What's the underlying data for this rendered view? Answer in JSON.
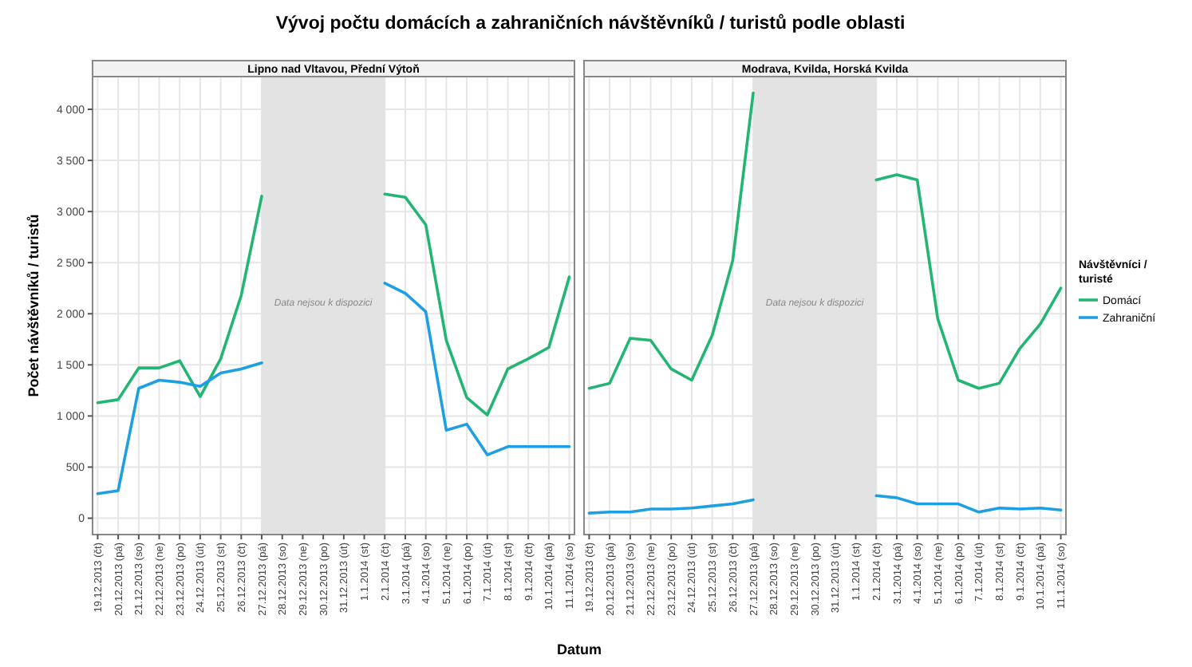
{
  "chart_data": [
    {
      "type": "line",
      "title": "Vývoj počtu domácích a zahraničních návštěvníků / turistů podle oblasti",
      "subtitle": "Lipno nad Vltavou, Přední Výtoň",
      "xlabel": "Datum",
      "ylabel": "Počet návštěvníků / turistů",
      "categories": [
        "19.12.2013 (čt)",
        "20.12.2013 (pá)",
        "21.12.2013 (so)",
        "22.12.2013 (ne)",
        "23.12.2013 (po)",
        "24.12.2013 (út)",
        "25.12.2013 (st)",
        "26.12.2013 (čt)",
        "27.12.2013 (pá)",
        "28.12.2013 (so)",
        "29.12.2013 (ne)",
        "30.12.2013 (po)",
        "31.12.2013 (út)",
        "1.1.2014 (st)",
        "2.1.2014 (čt)",
        "3.1.2014 (pá)",
        "4.1.2014 (so)",
        "5.1.2014 (ne)",
        "6.1.2014 (po)",
        "7.1.2014 (út)",
        "8.1.2014 (st)",
        "9.1.2014 (čt)",
        "10.1.2014 (pá)",
        "11.1.2014 (so)"
      ],
      "series": [
        {
          "color": "#22b573",
          "values": [
            1130,
            1160,
            1470,
            1470,
            1540,
            1190,
            1560,
            2180,
            3150,
            null,
            null,
            null,
            null,
            null,
            3170,
            3140,
            2870,
            1740,
            1180,
            1010,
            1460,
            1560,
            1670,
            2360
          ]
        },
        {
          "color": "#1e9fe3",
          "values": [
            240,
            270,
            1270,
            1350,
            1330,
            1290,
            1420,
            1460,
            1520,
            null,
            null,
            null,
            null,
            null,
            2300,
            2200,
            2020,
            860,
            920,
            620,
            700,
            700,
            700,
            700
          ]
        }
      ],
      "ylim": [
        -160,
        4320
      ],
      "yticks": [
        {
          "value": 0,
          "label": "0"
        },
        {
          "value": 500,
          "label": "500"
        },
        {
          "value": 1000,
          "label": "1 000"
        },
        {
          "value": 1500,
          "label": "1 500"
        },
        {
          "value": 2000,
          "label": "2 000"
        },
        {
          "value": 2500,
          "label": "2 500"
        },
        {
          "value": 3000,
          "label": "3 000"
        },
        {
          "value": 3500,
          "label": "3 500"
        },
        {
          "value": 4000,
          "label": "4 000"
        }
      ],
      "bands": [
        {
          "axis": "x",
          "from": "27.12.2013 (pá)",
          "to": "2.1.2014 (čt)",
          "label": "Data nejsou k dispozici",
          "color": "#e3e3e3"
        }
      ],
      "grid": true,
      "legend": false
    },
    {
      "type": "line",
      "subtitle": "Modrava, Kvilda, Horská Kvilda",
      "legend_title": "Návštěvníci / turisté",
      "categories": [
        "19.12.2013 (čt)",
        "20.12.2013 (pá)",
        "21.12.2013 (so)",
        "22.12.2013 (ne)",
        "23.12.2013 (po)",
        "24.12.2013 (út)",
        "25.12.2013 (st)",
        "26.12.2013 (čt)",
        "27.12.2013 (pá)",
        "28.12.2013 (so)",
        "29.12.2013 (ne)",
        "30.12.2013 (po)",
        "31.12.2013 (út)",
        "1.1.2014 (st)",
        "2.1.2014 (čt)",
        "3.1.2014 (pá)",
        "4.1.2014 (so)",
        "5.1.2014 (ne)",
        "6.1.2014 (po)",
        "7.1.2014 (út)",
        "8.1.2014 (st)",
        "9.1.2014 (čt)",
        "10.1.2014 (pá)",
        "11.1.2014 (so)"
      ],
      "series": [
        {
          "name": "Domácí",
          "color": "#22b573",
          "values": [
            1270,
            1320,
            1760,
            1740,
            1460,
            1350,
            1790,
            2520,
            4160,
            null,
            null,
            null,
            null,
            null,
            3310,
            3360,
            3310,
            1950,
            1350,
            1270,
            1320,
            1660,
            1900,
            2250
          ]
        },
        {
          "name": "Zahraniční",
          "color": "#1e9fe3",
          "values": [
            50,
            60,
            60,
            90,
            90,
            100,
            120,
            140,
            180,
            null,
            null,
            null,
            null,
            null,
            220,
            200,
            140,
            140,
            140,
            60,
            100,
            90,
            100,
            80
          ]
        }
      ],
      "ylim": [
        -160,
        4320
      ],
      "yticks": [
        0,
        500,
        1000,
        1500,
        2000,
        2500,
        3000,
        3500,
        4000
      ],
      "tick_labels": "x",
      "bands": [
        {
          "axis": "x",
          "from": "27.12.2013 (pá)",
          "to": "2.1.2014 (čt)",
          "label": "Data nejsou k dispozici",
          "color": "#e3e3e3"
        }
      ],
      "grid": true,
      "legend": "right"
    }
  ]
}
